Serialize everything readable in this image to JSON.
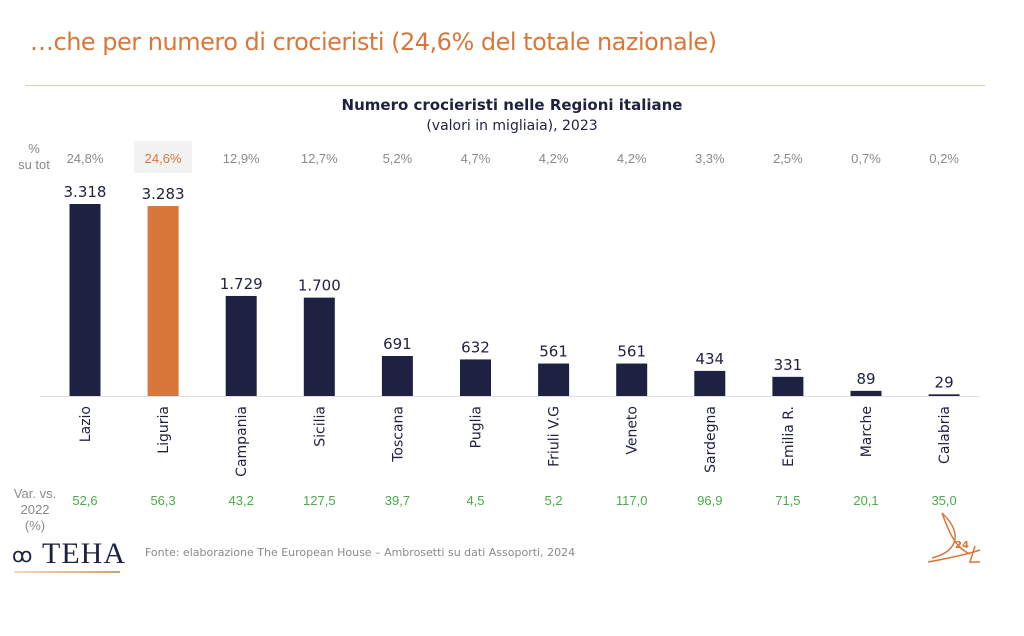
{
  "page": {
    "title": "…che per numero di crocieristi (24,6% del totale nazionale)",
    "source": "Fonte: elaborazione The European House – Ambrosetti su dati Assoporti, 2024",
    "logo_text": "TEHA",
    "logo_mark": "ꝏ",
    "page_number": "24"
  },
  "row_labels": {
    "pct_line1": "%",
    "pct_line2": "su tot",
    "var_line1": "Var. vs.",
    "var_line2": "2022 (%)"
  },
  "colors": {
    "bar": "#1e2142",
    "highlight": "#d9773a",
    "pct_text": "#8a8a8a",
    "var_text": "#4caa4c",
    "highlight_bg": "#f2f2f2"
  },
  "chart_data": {
    "type": "bar",
    "title": "Numero crocieristi nelle Regioni italiane",
    "subtitle": "(valori in migliaia), 2023",
    "xlabel": "",
    "ylabel": "",
    "ylim": [
      0,
      3318
    ],
    "grid": false,
    "highlight_category": "Liguria",
    "categories": [
      "Lazio",
      "Liguria",
      "Campania",
      "Sicilia",
      "Toscana",
      "Puglia",
      "Friuli V.G",
      "Veneto",
      "Sardegna",
      "Emilia R.",
      "Marche",
      "Calabria"
    ],
    "values": [
      3318,
      3283,
      1729,
      1700,
      691,
      632,
      561,
      561,
      434,
      331,
      89,
      29
    ],
    "value_labels": [
      "3.318",
      "3.283",
      "1.729",
      "1.700",
      "691",
      "632",
      "561",
      "561",
      "434",
      "331",
      "89",
      "29"
    ],
    "share_of_total": [
      "24,8%",
      "24,6%",
      "12,9%",
      "12,7%",
      "5,2%",
      "4,7%",
      "4,2%",
      "4,2%",
      "3,3%",
      "2,5%",
      "0,7%",
      "0,2%"
    ],
    "var_vs_2022_pct": [
      "52,6",
      "56,3",
      "43,2",
      "127,5",
      "39,7",
      "4,5",
      "5,2",
      "117,0",
      "96,9",
      "71,5",
      "20,1",
      "35,0"
    ]
  }
}
